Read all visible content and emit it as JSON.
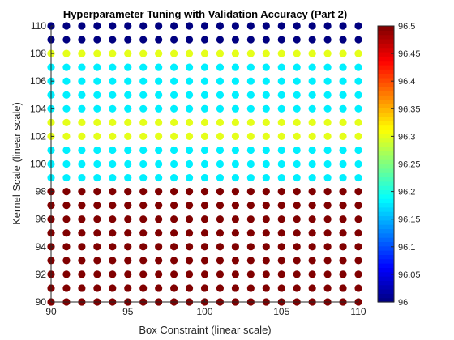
{
  "chart_data": {
    "type": "scatter",
    "title": "Hyperparameter Tuning with Validation Accuracy (Part 2)",
    "xlabel": "Box Constraint (linear scale)",
    "ylabel": "Kernel Scale (linear scale)",
    "xlim": [
      90,
      110
    ],
    "ylim": [
      90,
      110
    ],
    "x_ticks": [
      "90",
      "95",
      "100",
      "105",
      "110"
    ],
    "y_ticks": [
      "90",
      "92",
      "94",
      "96",
      "98",
      "100",
      "102",
      "104",
      "106",
      "108",
      "110"
    ],
    "x": [
      90,
      91,
      92,
      93,
      94,
      95,
      96,
      97,
      98,
      99,
      100,
      101,
      102,
      103,
      104,
      105,
      106,
      107,
      108,
      109,
      110
    ],
    "y": [
      90,
      91,
      92,
      93,
      94,
      95,
      96,
      97,
      98,
      99,
      100,
      101,
      102,
      103,
      104,
      105,
      106,
      107,
      108,
      109,
      110
    ],
    "accuracy_by_y": {
      "90": 96.5,
      "91": 96.5,
      "92": 96.5,
      "93": 96.5,
      "94": 96.5,
      "95": 96.5,
      "96": 96.5,
      "97": 96.5,
      "98": 96.5,
      "99": 96.18,
      "100": 96.18,
      "101": 96.18,
      "102": 96.3,
      "103": 96.3,
      "104": 96.18,
      "105": 96.18,
      "106": 96.18,
      "107": 96.18,
      "108": 96.3,
      "109": 96.0,
      "110": 96.0
    },
    "colorbar": {
      "colormap": "jet",
      "clim": [
        96,
        96.5
      ],
      "ticks": [
        "96",
        "96.05",
        "96.1",
        "96.15",
        "96.2",
        "96.25",
        "96.3",
        "96.35",
        "96.4",
        "96.45",
        "96.5"
      ]
    },
    "grid": false,
    "legend": "none"
  }
}
